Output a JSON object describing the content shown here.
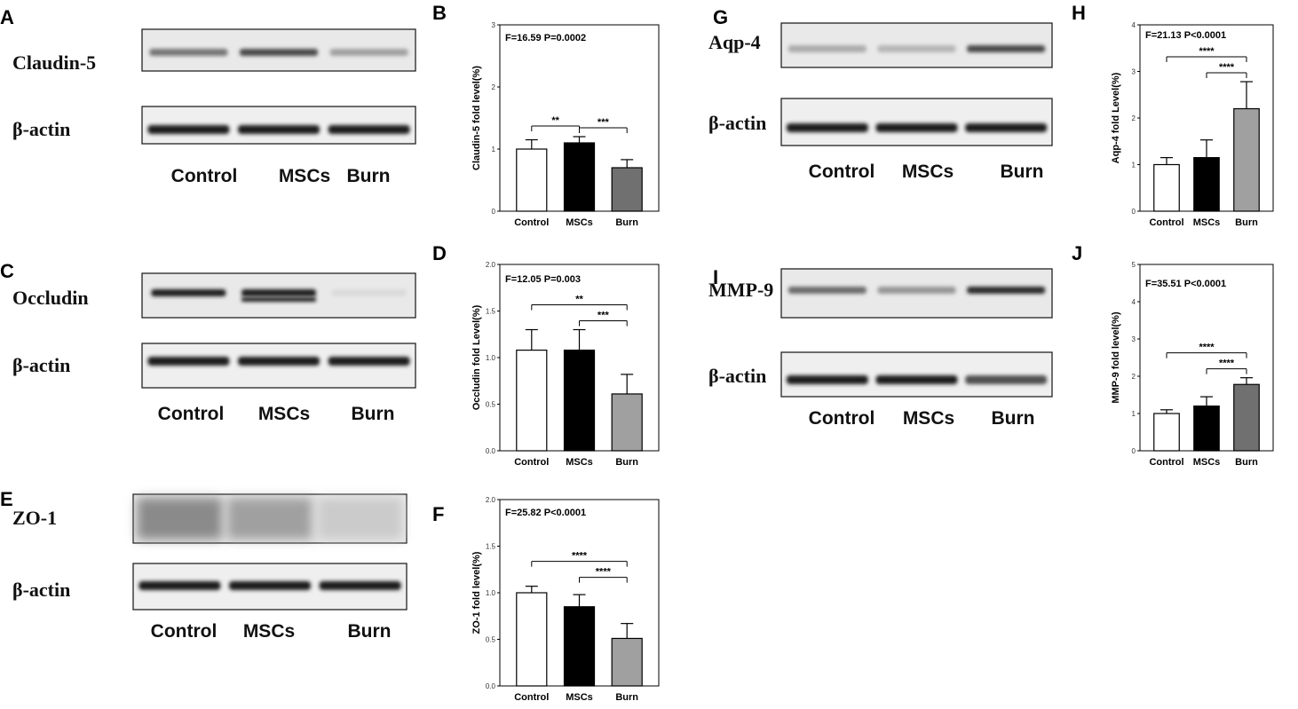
{
  "blots": [
    {
      "letter": "A",
      "protein": "Claudin-5",
      "control": "β-actin",
      "lanes": [
        "Control",
        "MSCs",
        "Burn"
      ],
      "intensity": [
        0.55,
        0.75,
        0.35
      ]
    },
    {
      "letter": "C",
      "protein": "Occludin",
      "control": "β-actin",
      "lanes": [
        "Control",
        "MSCs",
        "Burn"
      ],
      "intensity": [
        0.95,
        0.95,
        0.08
      ]
    },
    {
      "letter": "E",
      "protein": "ZO-1",
      "control": "β-actin",
      "lanes": [
        "Control",
        "MSCs",
        "Burn"
      ],
      "intensity": [
        0.45,
        0.35,
        0.15
      ]
    },
    {
      "letter": "G",
      "protein": "Aqp-4",
      "control": "β-actin",
      "lanes": [
        "Control",
        "MSCs",
        "Burn"
      ],
      "intensity": [
        0.3,
        0.25,
        0.75
      ]
    },
    {
      "letter": "I",
      "protein": "MMP-9",
      "control": "β-actin",
      "lanes": [
        "Control",
        "MSCs",
        "Burn"
      ],
      "intensity": [
        0.6,
        0.4,
        0.9
      ]
    }
  ],
  "chart_data": [
    {
      "letter": "B",
      "type": "bar",
      "stat_text": "F=16.59  P=0.0002",
      "ylabel": "Claudin-5 fold level(%)",
      "categories": [
        "Control",
        "MSCs",
        "Burn"
      ],
      "values": [
        1.0,
        1.1,
        0.7
      ],
      "errors": [
        0.15,
        0.1,
        0.13
      ],
      "ylim": [
        0,
        3
      ],
      "yticks": [
        "0",
        "1",
        "2",
        "3"
      ],
      "ytick_values": [
        0,
        1,
        2,
        3
      ],
      "colors": [
        "#ffffff",
        "#000000",
        "#707070"
      ],
      "significance": [
        {
          "from": 0,
          "to": 1,
          "label": "**"
        },
        {
          "from": 1,
          "to": 2,
          "label": "***"
        }
      ]
    },
    {
      "letter": "D",
      "type": "bar",
      "stat_text": "F=12.05  P=0.003",
      "ylabel": "Occludin fold Level(%)",
      "categories": [
        "Control",
        "MSCs",
        "Burn"
      ],
      "values": [
        1.08,
        1.08,
        0.61
      ],
      "errors": [
        0.22,
        0.22,
        0.21
      ],
      "ylim": [
        0,
        2
      ],
      "yticks": [
        "0.0",
        "0.5",
        "1.0",
        "1.5",
        "2.0"
      ],
      "ytick_values": [
        0,
        0.5,
        1,
        1.5,
        2
      ],
      "colors": [
        "#ffffff",
        "#000000",
        "#a0a0a0"
      ],
      "significance": [
        {
          "from": 0,
          "to": 2,
          "label": "**"
        },
        {
          "from": 1,
          "to": 2,
          "label": "***"
        }
      ]
    },
    {
      "letter": "F",
      "type": "bar",
      "stat_text": "F=25.82  P<0.0001",
      "ylabel": "ZO-1 fold level(%)",
      "categories": [
        "Control",
        "MSCs",
        "Burn"
      ],
      "values": [
        1.0,
        0.85,
        0.51
      ],
      "errors": [
        0.07,
        0.13,
        0.16
      ],
      "ylim": [
        0,
        2
      ],
      "yticks": [
        "0.0",
        "0.5",
        "1.0",
        "1.5",
        "2.0"
      ],
      "ytick_values": [
        0,
        0.5,
        1,
        1.5,
        2
      ],
      "colors": [
        "#ffffff",
        "#000000",
        "#a0a0a0"
      ],
      "significance": [
        {
          "from": 0,
          "to": 2,
          "label": "****"
        },
        {
          "from": 1,
          "to": 2,
          "label": "****"
        }
      ]
    },
    {
      "letter": "H",
      "type": "bar",
      "stat_text": "F=21.13  P<0.0001",
      "ylabel": "Aqp-4 fold Level(%)",
      "categories": [
        "Control",
        "MSCs",
        "Burn"
      ],
      "values": [
        1.0,
        1.15,
        2.2
      ],
      "errors": [
        0.15,
        0.38,
        0.58
      ],
      "ylim": [
        0,
        4
      ],
      "yticks": [
        "0",
        "1",
        "2",
        "3",
        "4"
      ],
      "ytick_values": [
        0,
        1,
        2,
        3,
        4
      ],
      "colors": [
        "#ffffff",
        "#000000",
        "#a0a0a0"
      ],
      "significance": [
        {
          "from": 0,
          "to": 2,
          "label": "****"
        },
        {
          "from": 1,
          "to": 2,
          "label": "****"
        }
      ]
    },
    {
      "letter": "J",
      "type": "bar",
      "stat_text": "F=35.51  P<0.0001",
      "ylabel": "MMP-9 fold level(%)",
      "categories": [
        "Control",
        "MSCs",
        "Burn"
      ],
      "values": [
        1.0,
        1.2,
        1.78
      ],
      "errors": [
        0.1,
        0.25,
        0.18
      ],
      "ylim": [
        0,
        5
      ],
      "yticks": [
        "0",
        "1",
        "2",
        "3",
        "4",
        "5"
      ],
      "ytick_values": [
        0,
        1,
        2,
        3,
        4,
        5
      ],
      "colors": [
        "#ffffff",
        "#000000",
        "#707070"
      ],
      "significance": [
        {
          "from": 0,
          "to": 2,
          "label": "****"
        },
        {
          "from": 1,
          "to": 2,
          "label": "****"
        }
      ]
    }
  ]
}
